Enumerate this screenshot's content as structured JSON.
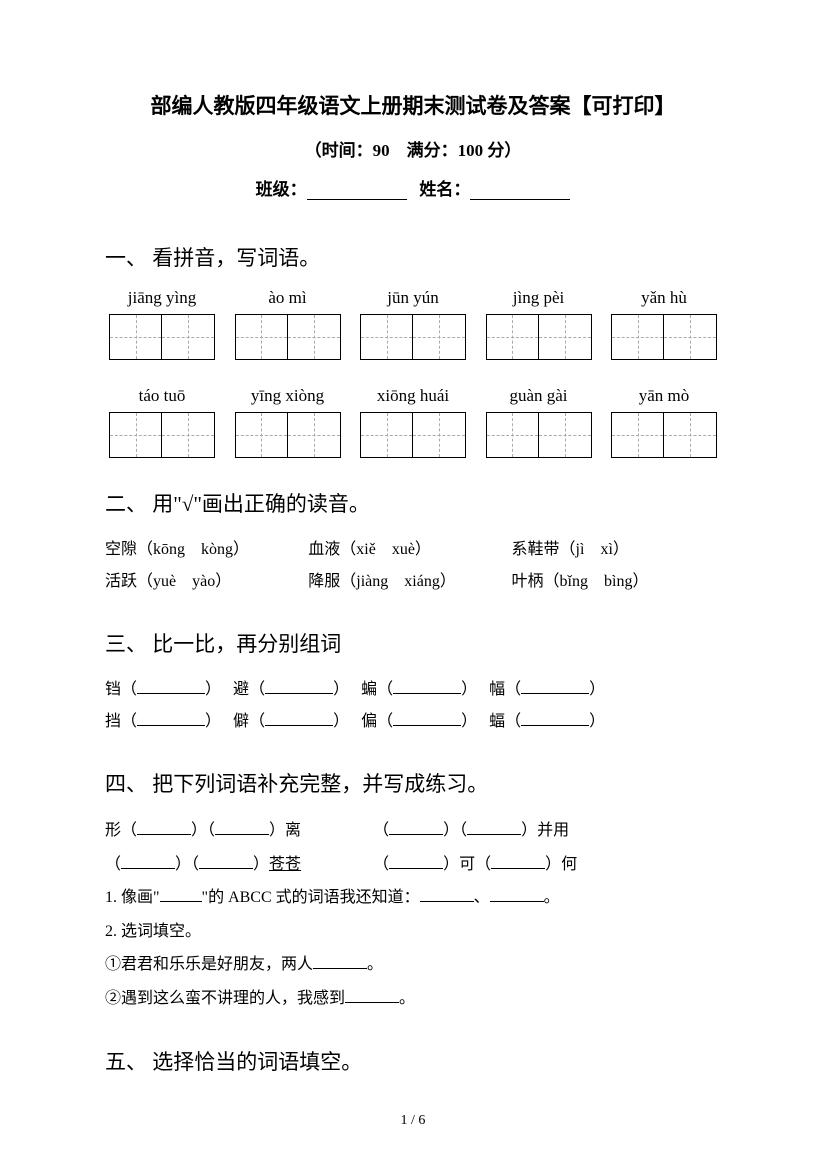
{
  "header": {
    "title": "部编人教版四年级语文上册期末测试卷及答案【可打印】",
    "subtitle": "（时间：90　满分：100 分）",
    "class_label": "班级：",
    "name_label": "姓名："
  },
  "q1": {
    "heading": "一、 看拼音，写词语。",
    "row1_pinyin": [
      "jiāng yìng",
      "ào mì",
      "jūn yún",
      "jìng pèi",
      "yǎn hù"
    ],
    "row2_pinyin": [
      "táo tuō",
      "yīng xiòng",
      "xiōng huái",
      "guàn gài",
      "yān mò"
    ]
  },
  "q2": {
    "heading": "二、 用\"√\"画出正确的读音。",
    "items": [
      {
        "word": "空隙",
        "opts": "（kōng　kòng）"
      },
      {
        "word": "血液",
        "opts": "（xiě　xuè）"
      },
      {
        "word": "系鞋带",
        "opts": "（jì　xì）"
      },
      {
        "word": "活跃",
        "opts": "（yuè　yào）"
      },
      {
        "word": "降服",
        "opts": "（jiàng　xiáng）"
      },
      {
        "word": "叶柄",
        "opts": "（bǐng　bìng）"
      }
    ]
  },
  "q3": {
    "heading": "三、 比一比，再分别组词",
    "row1": [
      "铛",
      "避",
      "蝙",
      "幅"
    ],
    "row2": [
      "挡",
      "僻",
      "偏",
      "蝠"
    ]
  },
  "q4": {
    "heading": "四、 把下列词语补充完整，并写成练习。",
    "line1_a": "形（",
    "line1_b": "）（",
    "line1_c": "）离",
    "line1_d": "（",
    "line1_e": "）（",
    "line1_f": "）并用",
    "line2_a": "（",
    "line2_b": "）（",
    "line2_c": "）",
    "line2_cc": "苍苍",
    "line2_d": "（",
    "line2_e": "）可（",
    "line2_f": "）何",
    "sub1_a": "1. 像画\"",
    "sub1_b": "\"的 ABCC 式的词语我还知道：",
    "sub1_c": "、",
    "sub1_d": "。",
    "sub2": "2. 选词填空。",
    "sub2_1a": "①君君和乐乐是好朋友，两人",
    "sub2_1b": "。",
    "sub2_2a": "②遇到这么蛮不讲理的人，我感到",
    "sub2_2b": "。"
  },
  "q5": {
    "heading": "五、 选择恰当的词语填空。"
  },
  "page_num": "1 / 6"
}
